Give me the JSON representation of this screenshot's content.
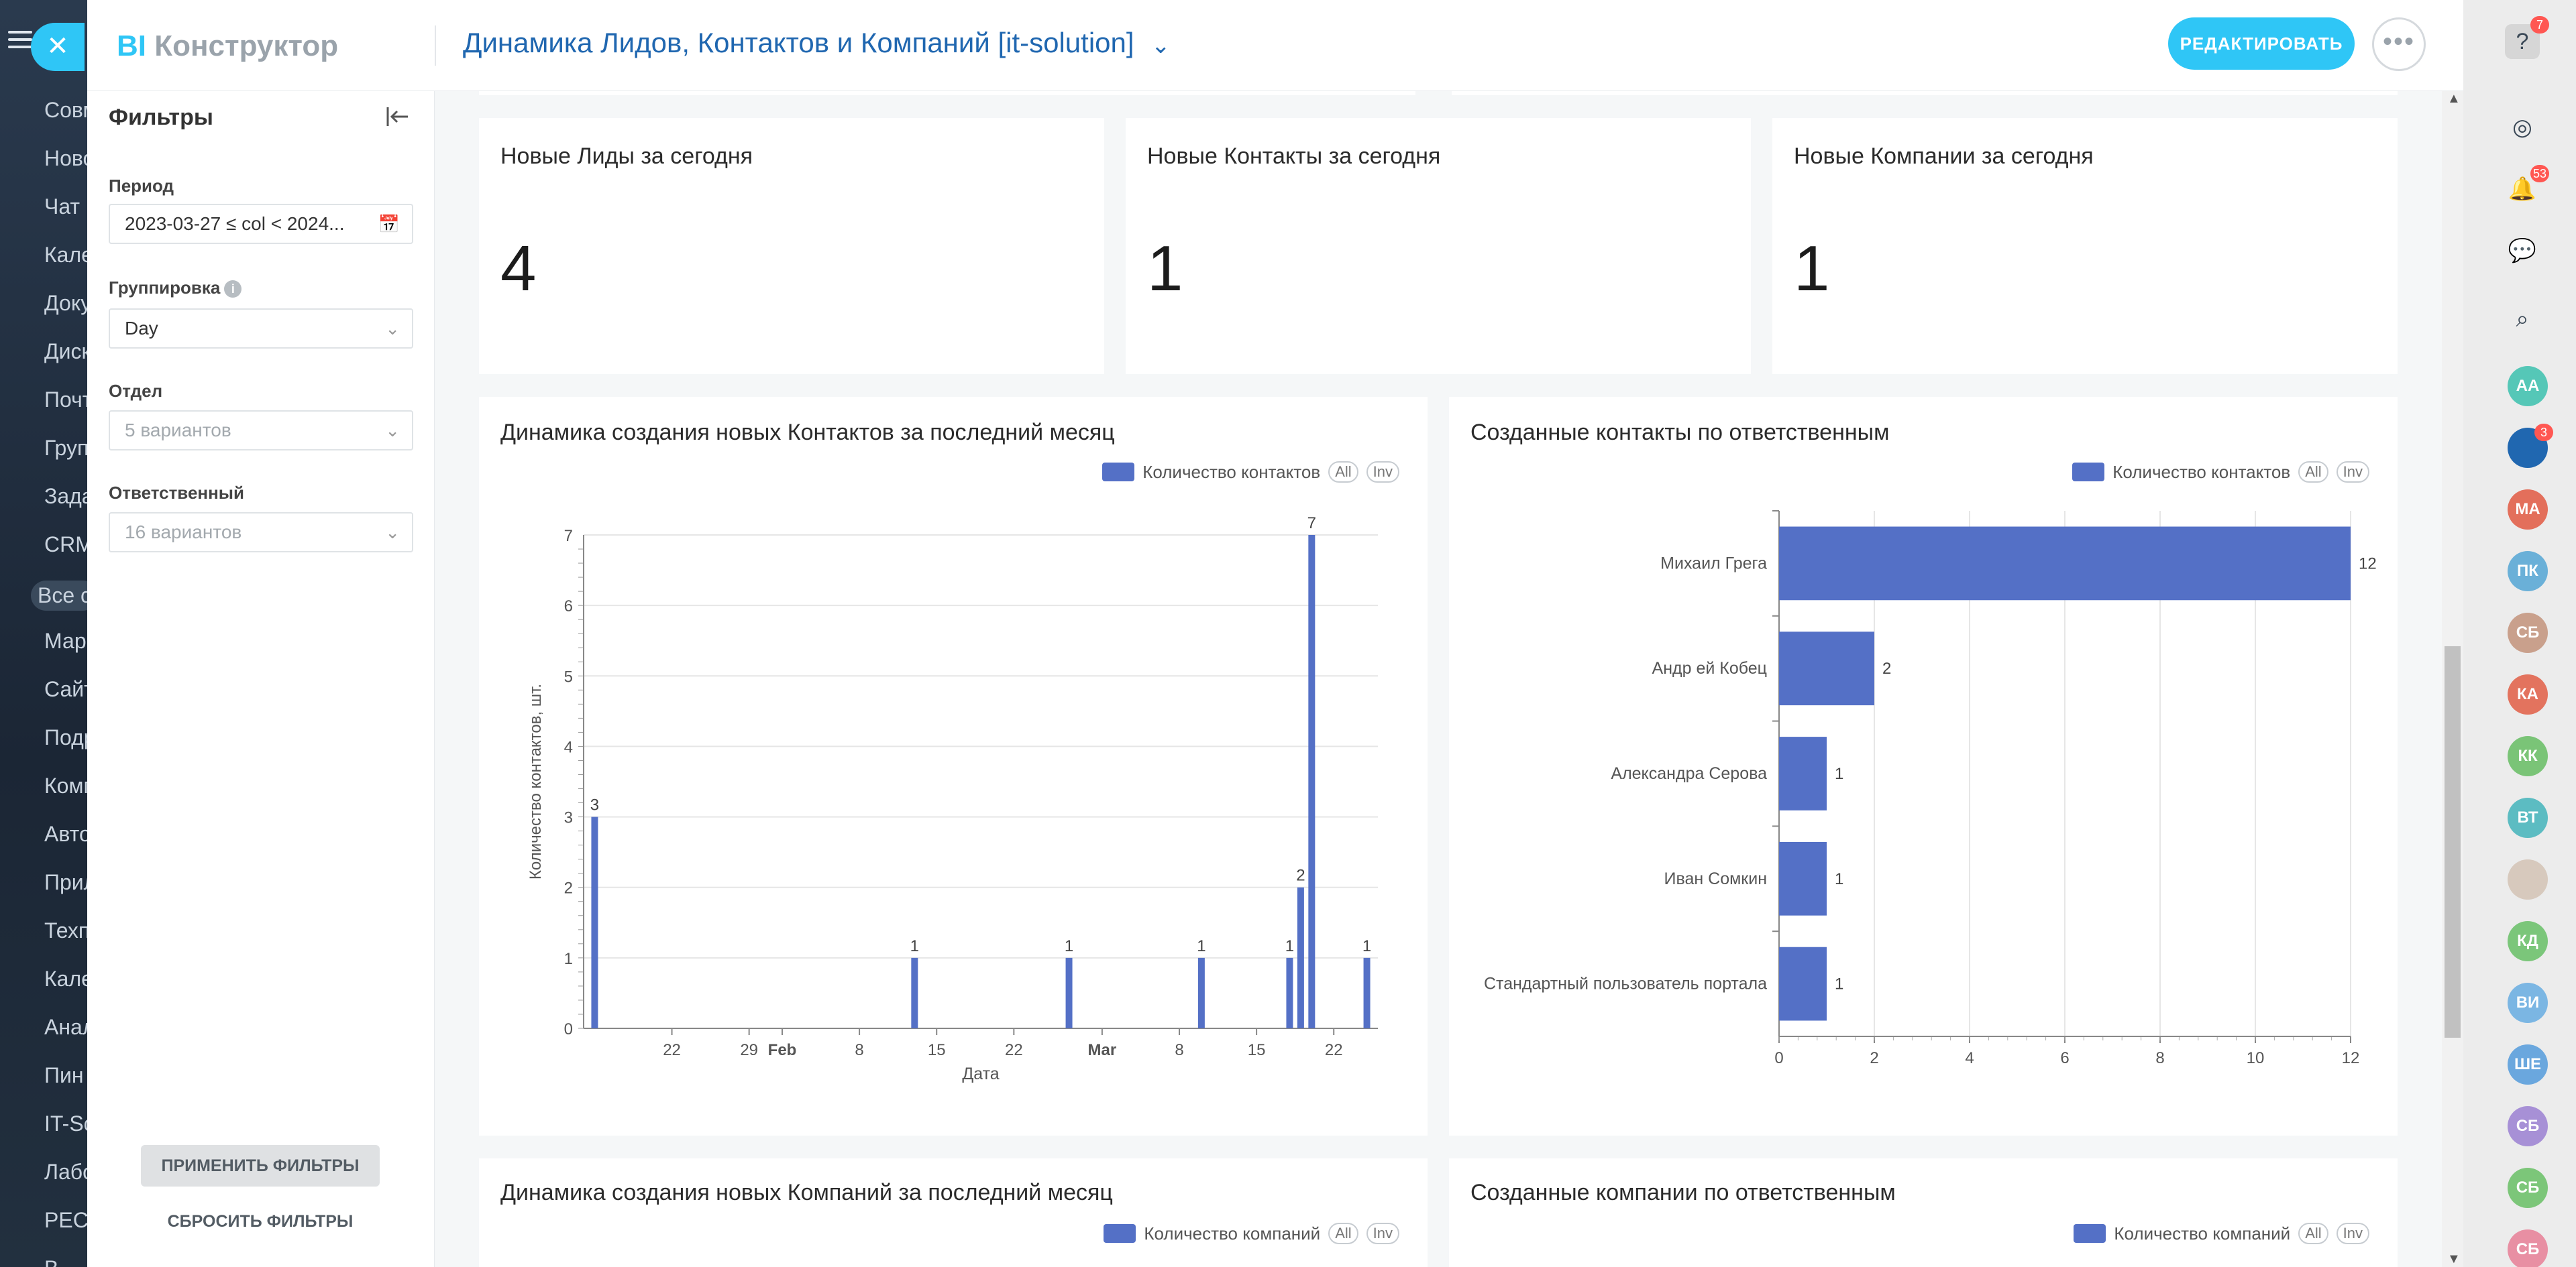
{
  "app_sidebar": {
    "items": [
      "Совм",
      "Ново",
      "Чат и",
      "Кале",
      "Доку",
      "Диск",
      "Почт",
      "Груп",
      "Зада",
      "CRM",
      "Все с",
      "Мар",
      "Сайт",
      "Подр",
      "Комп",
      "Авто",
      "Прил",
      "Техп",
      "Кале",
      "Анал",
      "Пин",
      "IT-Sc",
      "Лабо",
      "РЕСТ",
      "В"
    ]
  },
  "header": {
    "logo_bi": "BI",
    "logo_rest": "Конструктор",
    "dashboard_title": "Динамика Лидов, Контактов и Компаний [it-solution]",
    "edit_label": "РЕДАКТИРОВАТЬ",
    "more_label": "•••"
  },
  "filters": {
    "title": "Фильтры",
    "period": {
      "label": "Период",
      "value": "2023-03-27 ≤ col < 2024..."
    },
    "grouping": {
      "label": "Группировка",
      "value": "Day"
    },
    "department": {
      "label": "Отдел",
      "placeholder": "5 вариантов"
    },
    "responsible": {
      "label": "Ответственный",
      "placeholder": "16 вариантов"
    },
    "apply_label": "ПРИМЕНИТЬ ФИЛЬТРЫ",
    "reset_label": "СБРОСИТЬ ФИЛЬТРЫ"
  },
  "kpis": [
    {
      "title": "Новые Лиды за сегодня",
      "value": "4"
    },
    {
      "title": "Новые Контакты за сегодня",
      "value": "1"
    },
    {
      "title": "Новые Компании за сегодня",
      "value": "1"
    }
  ],
  "legend_pills": {
    "all": "All",
    "inv": "Inv"
  },
  "cards": {
    "contacts_dynamics_title": "Динамика создания новых Контактов за последний месяц",
    "contacts_by_owner_title": "Созданные контакты по ответственным",
    "companies_dynamics_title": "Динамика создания новых Компаний за последний месяц",
    "companies_by_owner_title": "Созданные компании по ответственным",
    "legend_contacts": "Количество контактов",
    "legend_companies": "Количество компаний"
  },
  "colors": {
    "accent": "#2fc6f6",
    "series": "#5470c6",
    "title_link": "#2067b0"
  },
  "chart_data": [
    {
      "type": "bar",
      "series": [
        {
          "name": "Количество контактов",
          "values": [
            3,
            1,
            1,
            1,
            1,
            2,
            7,
            1
          ]
        }
      ],
      "x": [
        "2024-01-15",
        "2024-02-13",
        "2024-02-27",
        "2024-03-10",
        "2024-03-18",
        "2024-03-19",
        "2024-03-20",
        "2024-03-25"
      ],
      "xlabel": "Дата",
      "ylabel": "Количество контактов, шт.",
      "ylim": [
        0,
        7
      ],
      "yticks": [
        "0",
        "1",
        "2",
        "3",
        "4",
        "5",
        "6",
        "7"
      ],
      "xticks": [
        {
          "date": "2024-01-22",
          "label": "22"
        },
        {
          "date": "2024-01-29",
          "label": "29"
        },
        {
          "date": "2024-02-01",
          "label": "Feb",
          "bold": true
        },
        {
          "date": "2024-02-08",
          "label": "8"
        },
        {
          "date": "2024-02-15",
          "label": "15"
        },
        {
          "date": "2024-02-22",
          "label": "22"
        },
        {
          "date": "2024-03-01",
          "label": "Mar",
          "bold": true
        },
        {
          "date": "2024-03-08",
          "label": "8"
        },
        {
          "date": "2024-03-15",
          "label": "15"
        },
        {
          "date": "2024-03-22",
          "label": "22"
        }
      ],
      "legend": "top-right",
      "grid": true
    },
    {
      "type": "bar",
      "orientation": "horizontal",
      "categories": [
        "Михаил Грега",
        "Андр ей Кобец",
        "Александра Серова",
        "Иван Сомкин",
        "Стандартный пользователь портала"
      ],
      "series": [
        {
          "name": "Количество контактов",
          "values": [
            12,
            2,
            1,
            1,
            1
          ]
        }
      ],
      "xlim": [
        0,
        12
      ],
      "xticks": [
        "0",
        "2",
        "4",
        "6",
        "8",
        "10",
        "12"
      ],
      "legend": "top-right",
      "grid": true
    }
  ],
  "rightbar": {
    "help_badge": "7",
    "notif_badge": "53",
    "chat_badge": "3",
    "avatars": [
      "АА",
      "",
      "МА",
      "ПК",
      "СБ",
      "КА",
      "КК",
      "ВТ",
      "",
      "КД",
      "ВИ",
      "ШЕ",
      "СБ",
      "СБ",
      "СБ"
    ],
    "avatar_colors": [
      "#55c7b7",
      "#2067b0",
      "#e36f5b",
      "#6ab0d8",
      "#c9a08c",
      "#e3735e",
      "#7ac477",
      "#5cbcc2",
      "#d7c9bd",
      "#7bc67a",
      "#7bb6e3",
      "#6aa7de",
      "#a790d6",
      "#7cc679",
      "#e88fa3"
    ]
  }
}
